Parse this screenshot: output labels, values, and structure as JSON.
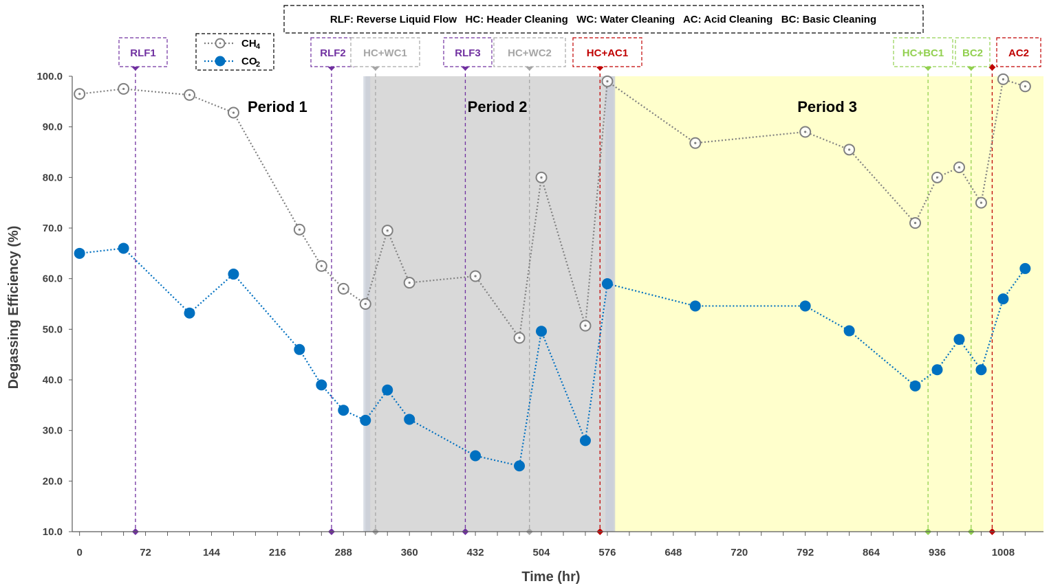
{
  "chart_data": {
    "type": "line",
    "title": "",
    "xlabel": "Time (hr)",
    "ylabel": "Degassing Efficiency (%)",
    "xlim": [
      -8,
      1052
    ],
    "ylim": [
      10,
      100
    ],
    "xticks": [
      0,
      72,
      144,
      216,
      288,
      360,
      432,
      504,
      576,
      648,
      720,
      792,
      864,
      936,
      1008
    ],
    "yticks": [
      "10.0",
      "20.0",
      "30.0",
      "40.0",
      "50.0",
      "60.0",
      "70.0",
      "80.0",
      "90.0",
      "100.0"
    ],
    "grid": false,
    "abbreviation_note": "RLF: Reverse Liquid Flow   HC: Header Cleaning   WC: Water Cleaning   AC: Acid Cleaning   BC: Basic Cleaning",
    "legend": {
      "position": "top-left",
      "entries": [
        {
          "label": "CH",
          "subscript": "4"
        },
        {
          "label": "CO",
          "subscript": "2"
        }
      ]
    },
    "periods": [
      {
        "label": "Period 1",
        "x_start": -8,
        "x_end": 312,
        "color": "#ffffff",
        "label_x": 216
      },
      {
        "label": "Period 2",
        "x_start": 312,
        "x_end": 583,
        "color": "#d9d9d9",
        "label_x": 456
      },
      {
        "label": "Period 3",
        "x_start": 583,
        "x_end": 1052,
        "color": "#ffffcc",
        "label_x": 816
      }
    ],
    "series": [
      {
        "name": "CH4",
        "color": "#808080",
        "marker": "hollow-circle",
        "x": [
          0,
          48,
          120,
          168,
          240,
          264,
          288,
          312,
          336,
          360,
          432,
          480,
          504,
          552,
          576,
          672,
          792,
          840,
          912,
          936,
          960,
          984,
          1008,
          1032
        ],
        "y": [
          96.5,
          97.5,
          96.3,
          92.8,
          69.7,
          62.5,
          58.0,
          55.0,
          69.5,
          59.2,
          60.5,
          48.3,
          80.0,
          50.7,
          99.0,
          86.8,
          89.0,
          85.5,
          71.0,
          80.0,
          82.0,
          75.0,
          99.4,
          98.0
        ]
      },
      {
        "name": "CO2",
        "color": "#0070c0",
        "marker": "filled-circle",
        "x": [
          0,
          48,
          120,
          168,
          240,
          264,
          288,
          312,
          336,
          360,
          432,
          480,
          504,
          552,
          576,
          672,
          792,
          840,
          912,
          936,
          960,
          984,
          1008,
          1032
        ],
        "y": [
          65.0,
          66.0,
          53.2,
          60.9,
          46.0,
          39.0,
          34.0,
          32.0,
          38.0,
          32.2,
          25.0,
          23.0,
          49.6,
          28.0,
          59.0,
          54.6,
          54.6,
          49.7,
          38.8,
          42.0,
          48.0,
          42.0,
          56.0,
          62.0
        ]
      }
    ],
    "events": [
      {
        "label": "RLF1",
        "x": 61,
        "color": "#7030a0"
      },
      {
        "label": "RLF2",
        "x": 275,
        "color": "#7030a0"
      },
      {
        "label": "HC+WC1",
        "x": 323,
        "color": "#a6a6a6"
      },
      {
        "label": "RLF3",
        "x": 421,
        "color": "#7030a0"
      },
      {
        "label": "HC+WC2",
        "x": 491,
        "color": "#a6a6a6"
      },
      {
        "label": "HC+AC1",
        "x": 568,
        "color": "#c00000"
      },
      {
        "label": "HC+BC1",
        "x": 926,
        "color": "#92d050"
      },
      {
        "label": "BC2",
        "x": 973,
        "color": "#92d050"
      },
      {
        "label": "AC2",
        "x": 996,
        "color": "#c00000"
      }
    ]
  }
}
